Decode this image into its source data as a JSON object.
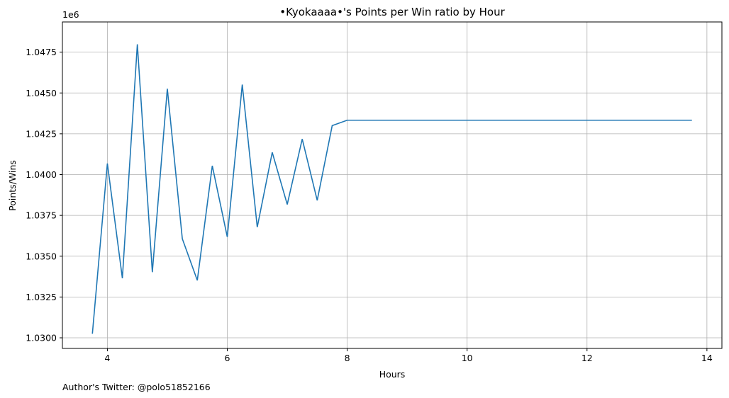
{
  "chart_data": {
    "type": "line",
    "title": "•Kyokaaaa•'s Points per Win ratio by Hour",
    "xlabel": "Hours",
    "ylabel": "Points/Wins",
    "y_offset_label": "1e6",
    "footer": "Author's Twitter: @polo51852166",
    "xlim": [
      3.25,
      14.25
    ],
    "ylim": [
      1.02935,
      1.04935
    ],
    "x_ticks": [
      4,
      6,
      8,
      10,
      12,
      14
    ],
    "x_tick_labels": [
      "4",
      "6",
      "8",
      "10",
      "12",
      "14"
    ],
    "y_ticks": [
      1.03,
      1.0325,
      1.035,
      1.0375,
      1.04,
      1.0425,
      1.045,
      1.0475
    ],
    "y_tick_labels": [
      "1.0300",
      "1.0325",
      "1.0350",
      "1.0375",
      "1.0400",
      "1.0425",
      "1.0450",
      "1.0475"
    ],
    "grid": true,
    "line_color": "#1f77b4",
    "series": [
      {
        "x": [
          3.75,
          4.0,
          4.25,
          4.5,
          4.75,
          5.0,
          5.25,
          5.5,
          5.75,
          6.0,
          6.25,
          6.5,
          6.75,
          7.0,
          7.25,
          7.5,
          7.75,
          8.0,
          8.25,
          8.5,
          8.75,
          9.0,
          9.25,
          9.5,
          9.75,
          10.0,
          10.25,
          10.5,
          10.75,
          11.0,
          11.25,
          11.5,
          11.75,
          12.0,
          12.25,
          12.5,
          12.75,
          13.0,
          13.25,
          13.5,
          13.75
        ],
        "values": [
          1.03025,
          1.04068,
          1.03365,
          1.04798,
          1.03402,
          1.04526,
          1.03607,
          1.03352,
          1.04054,
          1.03618,
          1.04551,
          1.03678,
          1.04136,
          1.03817,
          1.04218,
          1.03842,
          1.043,
          1.04333,
          1.04333,
          1.04333,
          1.04333,
          1.04333,
          1.04333,
          1.04333,
          1.04333,
          1.04333,
          1.04333,
          1.04333,
          1.04333,
          1.04333,
          1.04333,
          1.04333,
          1.04333,
          1.04333,
          1.04333,
          1.04333,
          1.04333,
          1.04333,
          1.04333,
          1.04333,
          1.04333
        ]
      }
    ]
  }
}
